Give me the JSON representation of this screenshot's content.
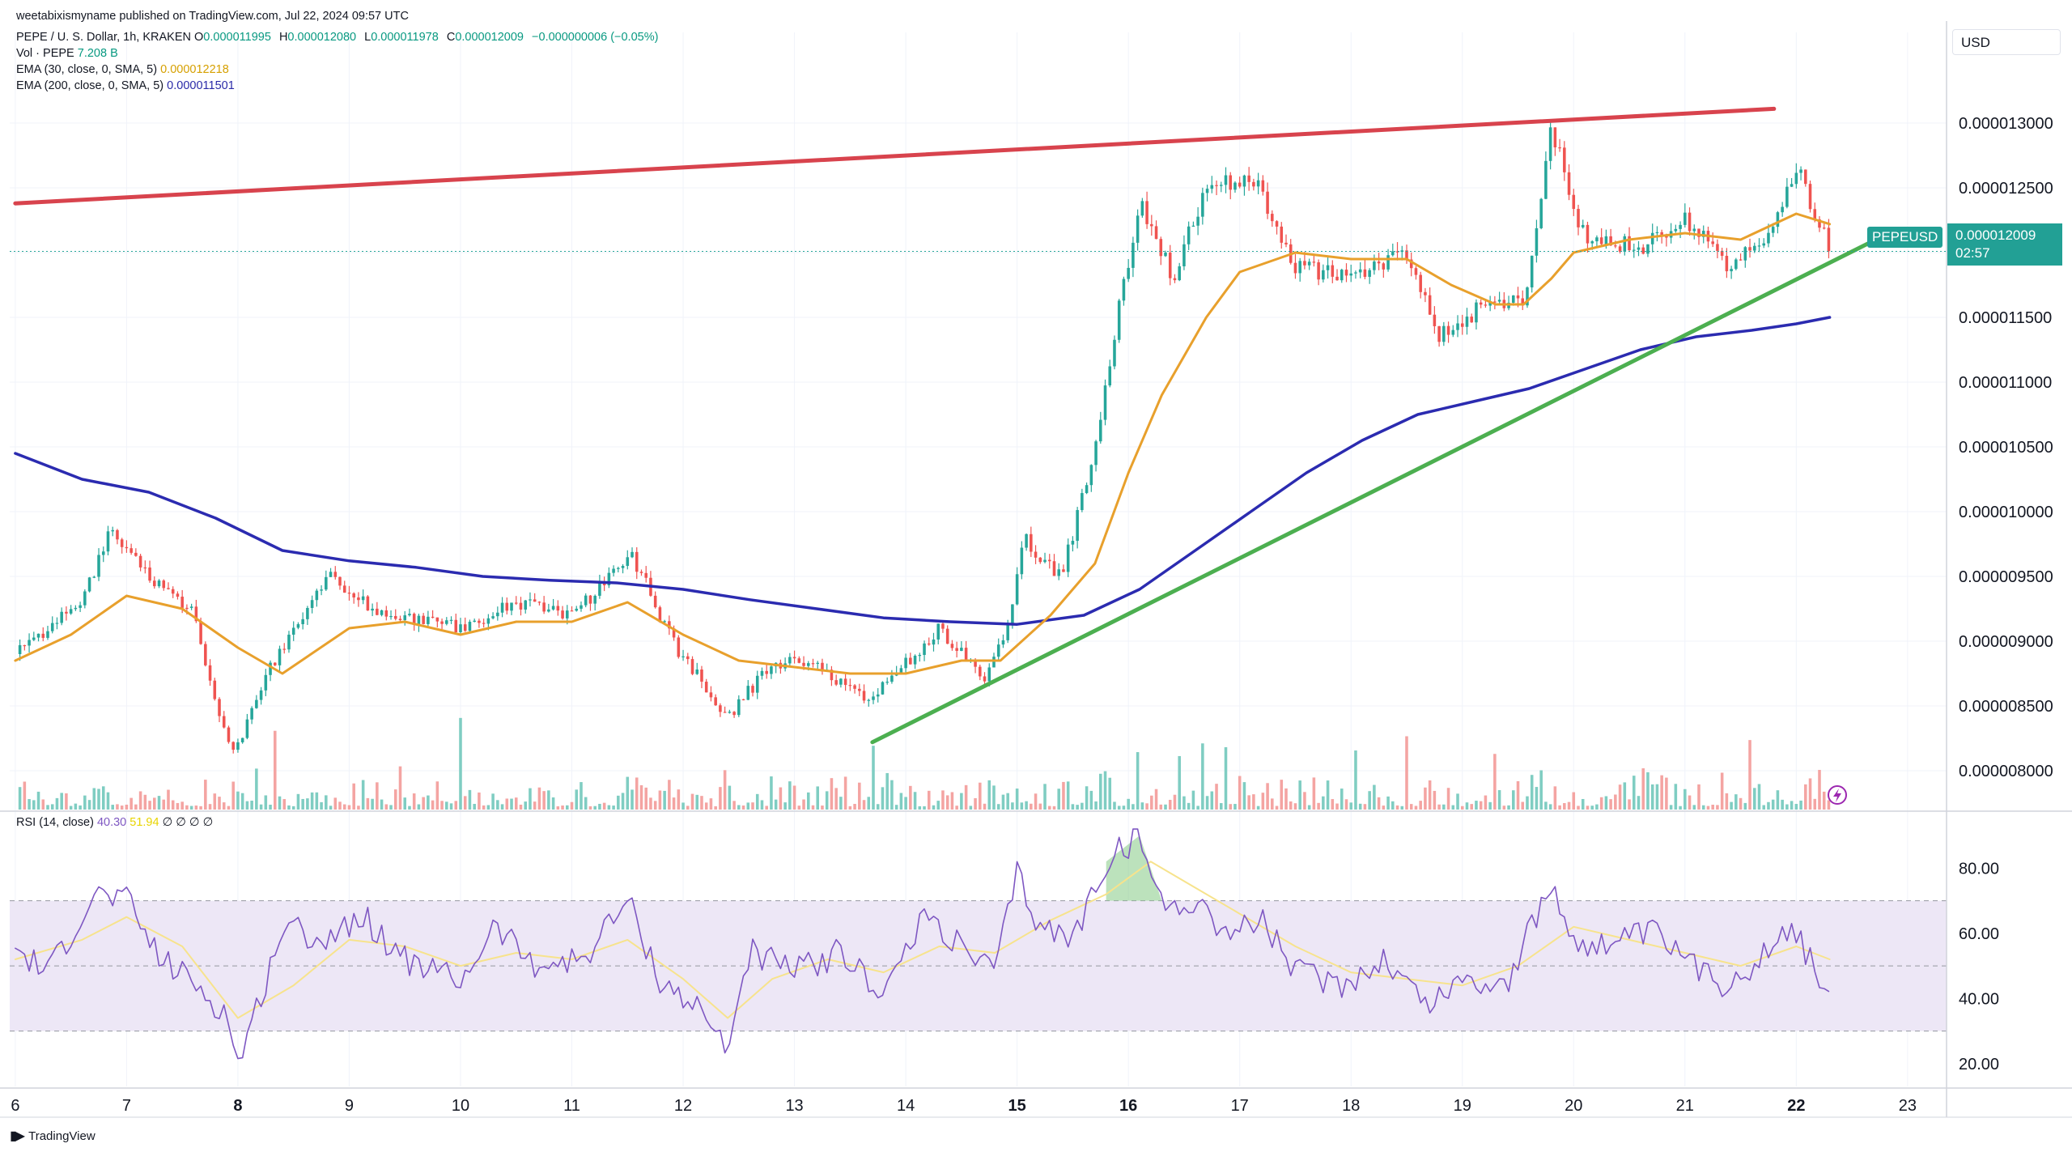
{
  "header": {
    "published": "weetabixismyname published on TradingView.com, Jul 22, 2024 09:57 UTC"
  },
  "legend": {
    "symbol": "PEPE / U. S. Dollar, 1h, KRAKEN",
    "open_label": "O",
    "open": "0.000011995",
    "high_label": "H",
    "high": "0.000012080",
    "low_label": "L",
    "low": "0.000011978",
    "close_label": "C",
    "close": "0.000012009",
    "change": "−0.000000006 (−0.05%)",
    "vol_label": "Vol · PEPE",
    "vol": "7.208 B",
    "ema30_label": "EMA (30, close, 0, SMA, 5)",
    "ema30": "0.000012218",
    "ema200_label": "EMA (200, close, 0, SMA, 5)",
    "ema200": "0.000011501"
  },
  "rsi_legend": {
    "label": "RSI (14, close)",
    "rsi": "40.30",
    "rsi_ma": "51.94",
    "extras": "∅ ∅ ∅ ∅"
  },
  "currency": "USD",
  "price_tag": {
    "symbol": "PEPEUSD",
    "price": "0.000012009",
    "countdown": "02:57"
  },
  "footer": {
    "brand": "TradingView"
  },
  "colors": {
    "up": "#26a69a",
    "down": "#ef5350",
    "vol_up": "#7fcdc2",
    "vol_down": "#f4a4a2",
    "ema30": "#e8a02c",
    "ema200": "#2b2bb0",
    "resistance": "#d8434d",
    "support": "#4caf50",
    "rsi": "#7e57c2",
    "rsi_ma": "#f7e38c",
    "rsi_band": "#ede7f6"
  },
  "chart_data": [
    {
      "type": "candlestick",
      "title": "PEPE / U. S. Dollar, 1h, KRAKEN",
      "x": [
        "6",
        "7",
        "8",
        "9",
        "10",
        "11",
        "12",
        "13",
        "14",
        "15",
        "16",
        "17",
        "18",
        "19",
        "20",
        "21",
        "22",
        "23"
      ],
      "xlabel": "",
      "ylabel": "",
      "y_ticks": [
        "0.000013000",
        "0.000012500",
        "0.000012000",
        "0.000011500",
        "0.000011000",
        "0.000010500",
        "0.000010000",
        "0.000009500",
        "0.000009000",
        "0.000008500",
        "0.000008000"
      ],
      "ylim": [
        7.7e-06,
        1.37e-05
      ],
      "close_path": [
        {
          "day": 6.0,
          "price": 8.9e-06
        },
        {
          "day": 6.6,
          "price": 9.3e-06
        },
        {
          "day": 6.85,
          "price": 9.85e-06
        },
        {
          "day": 7.2,
          "price": 9.5e-06
        },
        {
          "day": 7.6,
          "price": 9.2e-06
        },
        {
          "day": 7.95,
          "price": 8.1e-06
        },
        {
          "day": 8.3,
          "price": 8.8e-06
        },
        {
          "day": 8.8,
          "price": 9.5e-06
        },
        {
          "day": 9.3,
          "price": 9.2e-06
        },
        {
          "day": 10.0,
          "price": 9.1e-06
        },
        {
          "day": 10.5,
          "price": 9.3e-06
        },
        {
          "day": 11.0,
          "price": 9.2e-06
        },
        {
          "day": 11.55,
          "price": 9.65e-06
        },
        {
          "day": 11.9,
          "price": 9e-06
        },
        {
          "day": 12.4,
          "price": 8.4e-06
        },
        {
          "day": 12.8,
          "price": 8.85e-06
        },
        {
          "day": 13.2,
          "price": 8.8e-06
        },
        {
          "day": 13.7,
          "price": 8.55e-06
        },
        {
          "day": 14.3,
          "price": 9.1e-06
        },
        {
          "day": 14.7,
          "price": 8.7e-06
        },
        {
          "day": 14.95,
          "price": 9.2e-06
        },
        {
          "day": 15.05,
          "price": 9.8e-06
        },
        {
          "day": 15.4,
          "price": 9.5e-06
        },
        {
          "day": 15.7,
          "price": 1.05e-05
        },
        {
          "day": 15.9,
          "price": 1.15e-05
        },
        {
          "day": 16.1,
          "price": 1.24e-05
        },
        {
          "day": 16.4,
          "price": 1.18e-05
        },
        {
          "day": 16.7,
          "price": 1.25e-05
        },
        {
          "day": 17.1,
          "price": 1.26e-05
        },
        {
          "day": 17.5,
          "price": 1.19e-05
        },
        {
          "day": 18.0,
          "price": 1.18e-05
        },
        {
          "day": 18.5,
          "price": 1.2e-05
        },
        {
          "day": 18.8,
          "price": 1.135e-05
        },
        {
          "day": 19.2,
          "price": 1.16e-05
        },
        {
          "day": 19.55,
          "price": 1.16e-05
        },
        {
          "day": 19.8,
          "price": 1.295e-05
        },
        {
          "day": 20.1,
          "price": 1.21e-05
        },
        {
          "day": 20.6,
          "price": 1.205e-05
        },
        {
          "day": 21.0,
          "price": 1.225e-05
        },
        {
          "day": 21.4,
          "price": 1.19e-05
        },
        {
          "day": 21.8,
          "price": 1.22e-05
        },
        {
          "day": 22.0,
          "price": 1.265e-05
        },
        {
          "day": 22.3,
          "price": 1.205e-05
        }
      ],
      "series": [
        {
          "name": "EMA (30, close, 0, SMA, 5)",
          "points": [
            {
              "day": 6.0,
              "price": 8.85e-06
            },
            {
              "day": 6.5,
              "price": 9.05e-06
            },
            {
              "day": 7.0,
              "price": 9.35e-06
            },
            {
              "day": 7.5,
              "price": 9.25e-06
            },
            {
              "day": 8.0,
              "price": 8.95e-06
            },
            {
              "day": 8.4,
              "price": 8.75e-06
            },
            {
              "day": 9.0,
              "price": 9.1e-06
            },
            {
              "day": 9.5,
              "price": 9.15e-06
            },
            {
              "day": 10.0,
              "price": 9.05e-06
            },
            {
              "day": 10.5,
              "price": 9.15e-06
            },
            {
              "day": 11.0,
              "price": 9.15e-06
            },
            {
              "day": 11.5,
              "price": 9.3e-06
            },
            {
              "day": 12.0,
              "price": 9.05e-06
            },
            {
              "day": 12.5,
              "price": 8.85e-06
            },
            {
              "day": 13.0,
              "price": 8.8e-06
            },
            {
              "day": 13.5,
              "price": 8.75e-06
            },
            {
              "day": 14.0,
              "price": 8.75e-06
            },
            {
              "day": 14.5,
              "price": 8.85e-06
            },
            {
              "day": 14.85,
              "price": 8.85e-06
            },
            {
              "day": 15.3,
              "price": 9.2e-06
            },
            {
              "day": 15.7,
              "price": 9.6e-06
            },
            {
              "day": 16.0,
              "price": 1.03e-05
            },
            {
              "day": 16.3,
              "price": 1.09e-05
            },
            {
              "day": 16.7,
              "price": 1.15e-05
            },
            {
              "day": 17.0,
              "price": 1.185e-05
            },
            {
              "day": 17.5,
              "price": 1.2e-05
            },
            {
              "day": 18.0,
              "price": 1.195e-05
            },
            {
              "day": 18.5,
              "price": 1.195e-05
            },
            {
              "day": 18.9,
              "price": 1.175e-05
            },
            {
              "day": 19.3,
              "price": 1.16e-05
            },
            {
              "day": 19.55,
              "price": 1.16e-05
            },
            {
              "day": 19.8,
              "price": 1.18e-05
            },
            {
              "day": 20.0,
              "price": 1.2e-05
            },
            {
              "day": 20.5,
              "price": 1.21e-05
            },
            {
              "day": 21.0,
              "price": 1.215e-05
            },
            {
              "day": 21.5,
              "price": 1.21e-05
            },
            {
              "day": 22.0,
              "price": 1.23e-05
            },
            {
              "day": 22.3,
              "price": 1.222e-05
            }
          ]
        },
        {
          "name": "EMA (200, close, 0, SMA, 5)",
          "points": [
            {
              "day": 6.0,
              "price": 1.045e-05
            },
            {
              "day": 6.6,
              "price": 1.025e-05
            },
            {
              "day": 7.2,
              "price": 1.015e-05
            },
            {
              "day": 7.8,
              "price": 9.95e-06
            },
            {
              "day": 8.4,
              "price": 9.7e-06
            },
            {
              "day": 9.0,
              "price": 9.62e-06
            },
            {
              "day": 9.6,
              "price": 9.57e-06
            },
            {
              "day": 10.2,
              "price": 9.5e-06
            },
            {
              "day": 10.8,
              "price": 9.47e-06
            },
            {
              "day": 11.4,
              "price": 9.45e-06
            },
            {
              "day": 12.0,
              "price": 9.4e-06
            },
            {
              "day": 12.6,
              "price": 9.32e-06
            },
            {
              "day": 13.2,
              "price": 9.25e-06
            },
            {
              "day": 13.8,
              "price": 9.18e-06
            },
            {
              "day": 14.4,
              "price": 9.15e-06
            },
            {
              "day": 15.0,
              "price": 9.13e-06
            },
            {
              "day": 15.6,
              "price": 9.2e-06
            },
            {
              "day": 16.1,
              "price": 9.4e-06
            },
            {
              "day": 16.6,
              "price": 9.7e-06
            },
            {
              "day": 17.1,
              "price": 1e-05
            },
            {
              "day": 17.6,
              "price": 1.03e-05
            },
            {
              "day": 18.1,
              "price": 1.055e-05
            },
            {
              "day": 18.6,
              "price": 1.075e-05
            },
            {
              "day": 19.1,
              "price": 1.085e-05
            },
            {
              "day": 19.6,
              "price": 1.095e-05
            },
            {
              "day": 20.1,
              "price": 1.11e-05
            },
            {
              "day": 20.6,
              "price": 1.125e-05
            },
            {
              "day": 21.1,
              "price": 1.135e-05
            },
            {
              "day": 21.6,
              "price": 1.14e-05
            },
            {
              "day": 22.0,
              "price": 1.145e-05
            },
            {
              "day": 22.3,
              "price": 1.15e-05
            }
          ]
        }
      ],
      "trendlines": [
        {
          "kind": "resistance",
          "from": {
            "day": 6.0,
            "price": 1.238e-05
          },
          "to": {
            "day": 21.8,
            "price": 1.311e-05
          }
        },
        {
          "kind": "support",
          "from": {
            "day": 13.7,
            "price": 8.22e-06
          },
          "to": {
            "day": 22.9,
            "price": 1.218e-05
          }
        }
      ],
      "volume": "histogram at bottom of price pane (relative, unlabeled)"
    },
    {
      "type": "line",
      "title": "RSI (14, close)",
      "x": [
        "6",
        "7",
        "8",
        "9",
        "10",
        "11",
        "12",
        "13",
        "14",
        "15",
        "16",
        "17",
        "18",
        "19",
        "20",
        "21",
        "22",
        "23"
      ],
      "y_ticks": [
        "80.00",
        "60.00",
        "40.00",
        "20.00"
      ],
      "ylim": [
        13,
        95
      ],
      "band": [
        30,
        70
      ],
      "midline": 50,
      "series": [
        {
          "name": "RSI",
          "points": [
            {
              "day": 6.0,
              "price": 55
            },
            {
              "day": 6.3,
              "price": 48
            },
            {
              "day": 6.7,
              "price": 72
            },
            {
              "day": 7.0,
              "price": 70
            },
            {
              "day": 7.3,
              "price": 52
            },
            {
              "day": 7.6,
              "price": 45
            },
            {
              "day": 7.9,
              "price": 35
            },
            {
              "day": 8.0,
              "price": 20
            },
            {
              "day": 8.2,
              "price": 40
            },
            {
              "day": 8.4,
              "price": 62
            },
            {
              "day": 8.8,
              "price": 58
            },
            {
              "day": 9.1,
              "price": 66
            },
            {
              "day": 9.5,
              "price": 52
            },
            {
              "day": 10.0,
              "price": 45
            },
            {
              "day": 10.3,
              "price": 62
            },
            {
              "day": 10.7,
              "price": 50
            },
            {
              "day": 11.1,
              "price": 52
            },
            {
              "day": 11.5,
              "price": 70
            },
            {
              "day": 11.8,
              "price": 45
            },
            {
              "day": 12.1,
              "price": 38
            },
            {
              "day": 12.4,
              "price": 25
            },
            {
              "day": 12.6,
              "price": 55
            },
            {
              "day": 13.0,
              "price": 48
            },
            {
              "day": 13.4,
              "price": 54
            },
            {
              "day": 13.8,
              "price": 42
            },
            {
              "day": 14.2,
              "price": 66
            },
            {
              "day": 14.5,
              "price": 55
            },
            {
              "day": 14.8,
              "price": 48
            },
            {
              "day": 15.0,
              "price": 78
            },
            {
              "day": 15.2,
              "price": 62
            },
            {
              "day": 15.5,
              "price": 58
            },
            {
              "day": 15.8,
              "price": 82
            },
            {
              "day": 16.1,
              "price": 90
            },
            {
              "day": 16.3,
              "price": 68
            },
            {
              "day": 16.6,
              "price": 70
            },
            {
              "day": 16.9,
              "price": 60
            },
            {
              "day": 17.2,
              "price": 64
            },
            {
              "day": 17.5,
              "price": 48
            },
            {
              "day": 17.9,
              "price": 44
            },
            {
              "day": 18.3,
              "price": 52
            },
            {
              "day": 18.7,
              "price": 38
            },
            {
              "day": 19.0,
              "price": 46
            },
            {
              "day": 19.4,
              "price": 44
            },
            {
              "day": 19.6,
              "price": 60
            },
            {
              "day": 19.8,
              "price": 74
            },
            {
              "day": 20.0,
              "price": 58
            },
            {
              "day": 20.3,
              "price": 56
            },
            {
              "day": 20.7,
              "price": 60
            },
            {
              "day": 21.0,
              "price": 52
            },
            {
              "day": 21.3,
              "price": 44
            },
            {
              "day": 21.6,
              "price": 50
            },
            {
              "day": 21.9,
              "price": 62
            },
            {
              "day": 22.1,
              "price": 54
            },
            {
              "day": 22.3,
              "price": 40
            }
          ]
        },
        {
          "name": "RSI MA",
          "points": [
            {
              "day": 6.0,
              "price": 52
            },
            {
              "day": 6.6,
              "price": 58
            },
            {
              "day": 7.0,
              "price": 65
            },
            {
              "day": 7.5,
              "price": 56
            },
            {
              "day": 8.0,
              "price": 34
            },
            {
              "day": 8.5,
              "price": 44
            },
            {
              "day": 9.0,
              "price": 58
            },
            {
              "day": 9.5,
              "price": 56
            },
            {
              "day": 10.0,
              "price": 50
            },
            {
              "day": 10.5,
              "price": 54
            },
            {
              "day": 11.0,
              "price": 52
            },
            {
              "day": 11.5,
              "price": 58
            },
            {
              "day": 12.0,
              "price": 46
            },
            {
              "day": 12.4,
              "price": 34
            },
            {
              "day": 12.8,
              "price": 46
            },
            {
              "day": 13.3,
              "price": 52
            },
            {
              "day": 13.8,
              "price": 48
            },
            {
              "day": 14.3,
              "price": 56
            },
            {
              "day": 14.8,
              "price": 54
            },
            {
              "day": 15.3,
              "price": 64
            },
            {
              "day": 15.8,
              "price": 72
            },
            {
              "day": 16.2,
              "price": 82
            },
            {
              "day": 16.6,
              "price": 74
            },
            {
              "day": 17.0,
              "price": 66
            },
            {
              "day": 17.5,
              "price": 56
            },
            {
              "day": 18.0,
              "price": 48
            },
            {
              "day": 18.5,
              "price": 46
            },
            {
              "day": 19.0,
              "price": 44
            },
            {
              "day": 19.5,
              "price": 50
            },
            {
              "day": 20.0,
              "price": 62
            },
            {
              "day": 20.5,
              "price": 58
            },
            {
              "day": 21.0,
              "price": 54
            },
            {
              "day": 21.5,
              "price": 50
            },
            {
              "day": 22.0,
              "price": 56
            },
            {
              "day": 22.3,
              "price": 52
            }
          ]
        }
      ]
    }
  ]
}
